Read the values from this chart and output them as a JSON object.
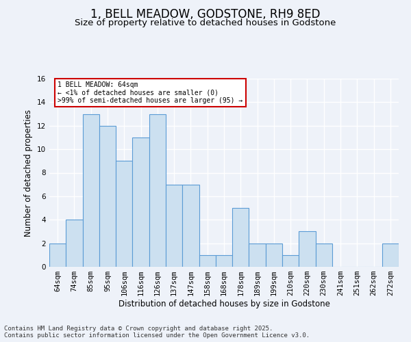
{
  "title": "1, BELL MEADOW, GODSTONE, RH9 8ED",
  "subtitle": "Size of property relative to detached houses in Godstone",
  "xlabel": "Distribution of detached houses by size in Godstone",
  "ylabel": "Number of detached properties",
  "bins": [
    "64sqm",
    "74sqm",
    "85sqm",
    "95sqm",
    "106sqm",
    "116sqm",
    "126sqm",
    "137sqm",
    "147sqm",
    "158sqm",
    "168sqm",
    "178sqm",
    "189sqm",
    "199sqm",
    "210sqm",
    "220sqm",
    "230sqm",
    "241sqm",
    "251sqm",
    "262sqm",
    "272sqm"
  ],
  "values": [
    2,
    4,
    13,
    12,
    9,
    11,
    13,
    7,
    7,
    1,
    1,
    5,
    2,
    2,
    1,
    3,
    2,
    0,
    0,
    0,
    2
  ],
  "bar_color": "#cce0f0",
  "bar_edge_color": "#5b9bd5",
  "annotation_title": "1 BELL MEADOW: 64sqm",
  "annotation_line1": "← <1% of detached houses are smaller (0)",
  "annotation_line2": ">99% of semi-detached houses are larger (95) →",
  "annotation_box_color": "#ffffff",
  "annotation_box_edge": "#cc0000",
  "ylim": [
    0,
    16
  ],
  "yticks": [
    0,
    2,
    4,
    6,
    8,
    10,
    12,
    14,
    16
  ],
  "footer_line1": "Contains HM Land Registry data © Crown copyright and database right 2025.",
  "footer_line2": "Contains public sector information licensed under the Open Government Licence v3.0.",
  "bg_color": "#eef2f9",
  "plot_bg_color": "#eef2f9",
  "grid_color": "#ffffff",
  "title_fontsize": 12,
  "subtitle_fontsize": 9.5,
  "axis_label_fontsize": 8.5,
  "tick_fontsize": 7.5,
  "footer_fontsize": 6.5
}
